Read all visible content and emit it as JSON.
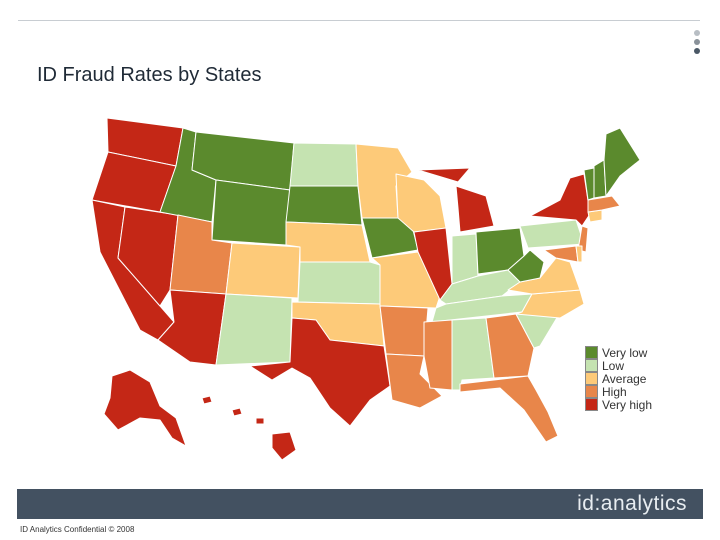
{
  "slide": {
    "title": "ID Fraud Rates by States",
    "footer_text": "ID Analytics Confidential © 2008",
    "brand": "id:analytics"
  },
  "colors": {
    "very_low": "#5b8a2d",
    "low": "#c5e3b1",
    "average": "#fdca79",
    "high": "#e8864a",
    "very_high": "#c42716"
  },
  "legend": [
    {
      "label": "Very low",
      "color": "#5b8a2d"
    },
    {
      "label": "Low",
      "color": "#c5e3b1"
    },
    {
      "label": "Average",
      "color": "#fdca79"
    },
    {
      "label": "High",
      "color": "#e8864a"
    },
    {
      "label": "Very high",
      "color": "#c42716"
    }
  ],
  "states": {
    "WA": "very_high",
    "OR": "very_high",
    "CA": "very_high",
    "NV": "very_high",
    "AZ": "very_high",
    "TX": "very_high",
    "AK": "very_high",
    "HI": "very_high",
    "IL": "very_high",
    "MI": "very_high",
    "NY": "very_high",
    "ID": "very_low",
    "MT": "very_low",
    "WY": "very_low",
    "SD": "very_low",
    "IA": "very_low",
    "OH": "very_low",
    "WV": "very_low",
    "VT": "very_low",
    "NH": "very_low",
    "ME": "very_low",
    "ND": "low",
    "KS": "low",
    "NM": "low",
    "IN": "low",
    "KY": "low",
    "TN": "low",
    "AL": "low",
    "SC": "low",
    "PA": "low",
    "MN": "average",
    "WI": "average",
    "NE": "average",
    "CO": "average",
    "MO": "average",
    "OK": "average",
    "VA": "average",
    "NC": "average",
    "CT": "average",
    "DE": "average",
    "UT": "high",
    "AR": "high",
    "LA": "high",
    "MS": "high",
    "GA": "high",
    "FL": "high",
    "MA": "high",
    "NJ": "high",
    "MD": "high"
  }
}
